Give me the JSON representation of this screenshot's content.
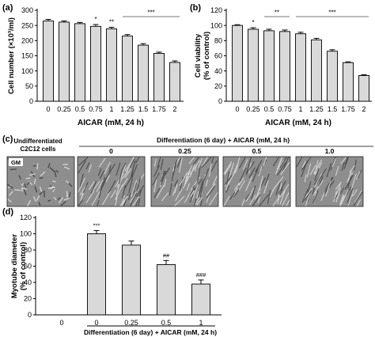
{
  "chart_data": [
    {
      "panel": "(a)",
      "type": "bar",
      "ylabel": "Cell number (×10³/ml)",
      "xlabel": "AICAR (mM, 24 h)",
      "categories": [
        "0",
        "0.25",
        "0.5",
        "0.75",
        "1",
        "1.25",
        "1.5",
        "1.75",
        "2"
      ],
      "values": [
        265,
        261,
        256,
        247,
        239,
        215,
        185,
        158,
        128
      ],
      "errors": [
        5,
        4,
        4,
        6,
        5,
        5,
        5,
        4,
        5
      ],
      "ylim": [
        0,
        300
      ],
      "yticks": [
        "0",
        "50",
        "100",
        "150",
        "200",
        "250",
        "300"
      ],
      "bar_color": "#d9d9d9",
      "annotations": [
        {
          "text": "*",
          "bars": [
            3
          ]
        },
        {
          "text": "**",
          "bars": [
            4
          ]
        },
        {
          "text": "***",
          "bars": [
            5,
            8
          ]
        }
      ]
    },
    {
      "panel": "(b)",
      "type": "bar",
      "ylabel_lines": [
        "Cell viability",
        "(% of control)"
      ],
      "xlabel": "AICAR (mM, 24 h)",
      "categories": [
        "0",
        "0.25",
        "0.5",
        "0.75",
        "1",
        "1.25",
        "1.5",
        "1.75",
        "2"
      ],
      "values": [
        100,
        95,
        93,
        92,
        89,
        81,
        66,
        51,
        34
      ],
      "errors": [
        1,
        2,
        2,
        2,
        2,
        2,
        2,
        1,
        1
      ],
      "ylim": [
        0,
        120
      ],
      "yticks": [
        "0",
        "20",
        "40",
        "60",
        "80",
        "100",
        "120"
      ],
      "bar_color": "#d9d9d9",
      "annotations": [
        {
          "text": "*",
          "bars": [
            1
          ]
        },
        {
          "text": "**",
          "bars": [
            2,
            3
          ]
        },
        {
          "text": "***",
          "bars": [
            4,
            8
          ]
        }
      ]
    },
    {
      "panel": "(d)",
      "type": "bar",
      "ylabel_lines": [
        "Myotube diameter",
        "(% of control)"
      ],
      "xlabel": "Differentiation (6 day) + AICAR (mM, 24 h)",
      "categories": [
        "0",
        "0",
        "0.25",
        "0.5",
        "1"
      ],
      "values": [
        0,
        100,
        86,
        62,
        38
      ],
      "errors": [
        0,
        4,
        5,
        5,
        5
      ],
      "ylim": [
        0,
        120
      ],
      "yticks": [
        "0",
        "20",
        "40",
        "60",
        "80",
        "100",
        "120"
      ],
      "bar_color": "#d9d9d9",
      "bar_labels": [
        "",
        "***",
        "",
        "##",
        "###"
      ],
      "bracket_from_category": 1
    }
  ],
  "panel_c": {
    "panel": "(c)",
    "left_title_lines": [
      "Undifferentiated",
      "C2C12 cells"
    ],
    "right_title": "Differentiation (6 day) + AICAR (mM, 24 h)",
    "images": [
      {
        "label": "GM",
        "header": ""
      },
      {
        "label": "",
        "header": "0"
      },
      {
        "label": "",
        "header": "0.25"
      },
      {
        "label": "",
        "header": "0.5"
      },
      {
        "label": "",
        "header": "1.0"
      }
    ]
  }
}
